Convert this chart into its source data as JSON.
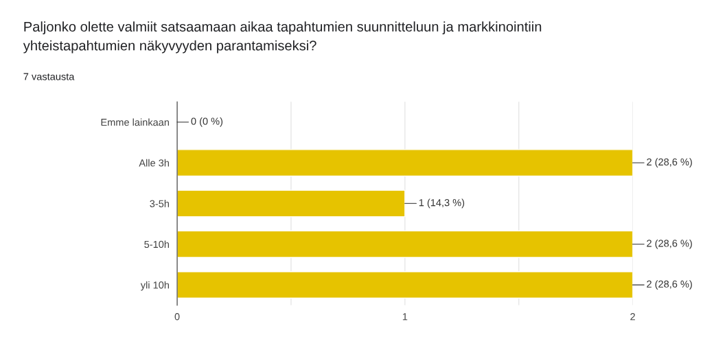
{
  "chart_data": {
    "type": "bar",
    "orientation": "horizontal",
    "title": "Paljonko olette valmiit satsaamaan aikaa tapahtumien suunnitteluun ja markkinointiin yhteistapahtumien näkyvyyden parantamiseksi?",
    "subtitle": "7 vastausta",
    "categories": [
      "Emme lainkaan",
      "Alle 3h",
      "3-5h",
      "5-10h",
      "yli 10h"
    ],
    "values": [
      0,
      2,
      1,
      2,
      2
    ],
    "value_labels": [
      "0 (0 %)",
      "2 (28,6 %)",
      "1 (14,3 %)",
      "2 (28,6 %)",
      "2 (28,6 %)"
    ],
    "color": "#e6c300",
    "xlim": [
      0,
      2
    ],
    "xticks": [
      0,
      {
        "value": 0.5,
        "label": null
      },
      1,
      {
        "value": 1.5,
        "label": null
      },
      2
    ],
    "grid": "x",
    "legend": false
  }
}
